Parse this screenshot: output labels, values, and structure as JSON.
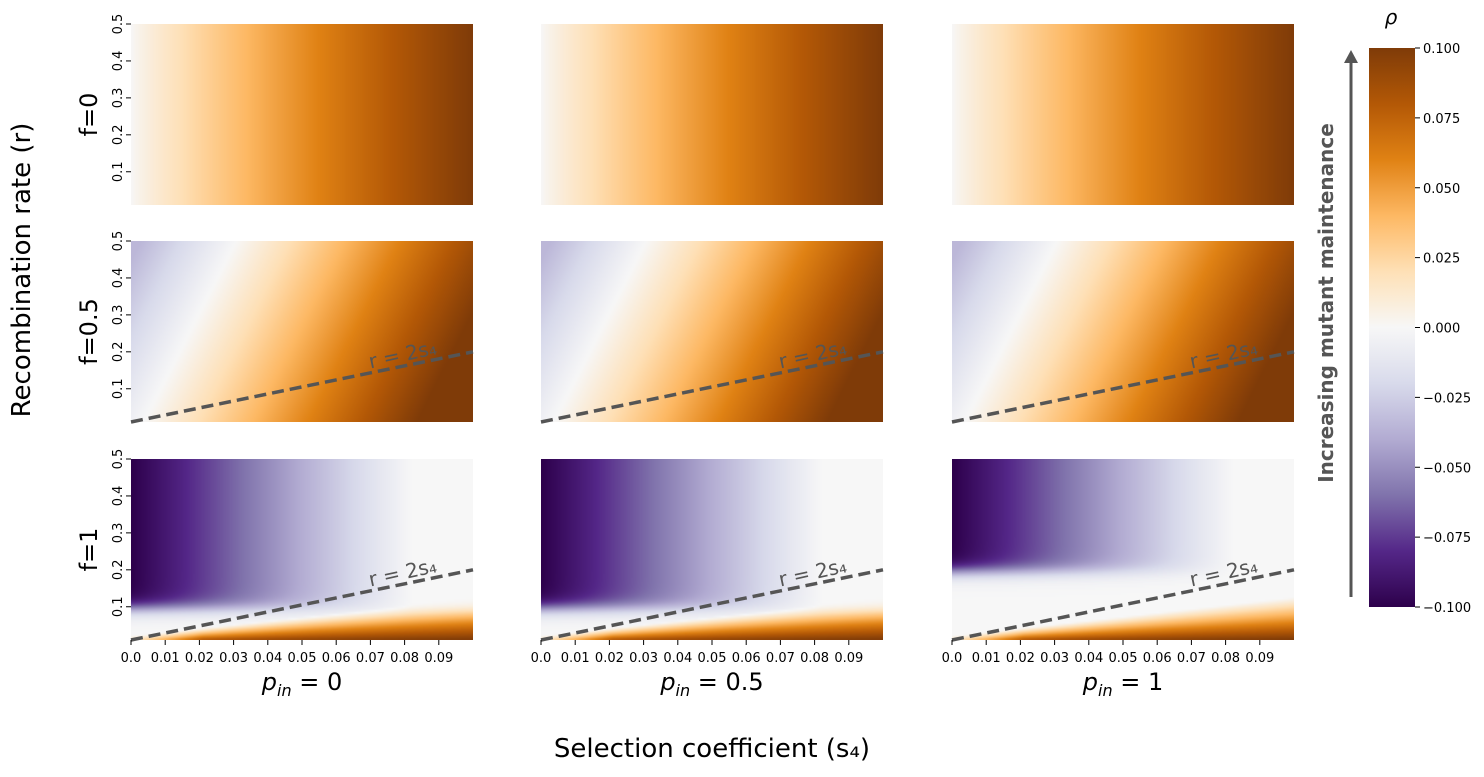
{
  "chart_data": {
    "type": "heatmap",
    "title": "",
    "xlabel": "Selection coefficient (s₄)",
    "ylabel": "Recombination rate (r)",
    "x_range": [
      0.0,
      0.1
    ],
    "y_range": [
      0.01,
      0.5
    ],
    "x_ticks": [
      0.0,
      0.01,
      0.02,
      0.03,
      0.04,
      0.05,
      0.06,
      0.07,
      0.08,
      0.09
    ],
    "x_tick_labels": [
      "0.0",
      "0.01",
      "0.02",
      "0.03",
      "0.04",
      "0.05",
      "0.06",
      "0.07",
      "0.08",
      "0.09"
    ],
    "y_ticks": [
      0.1,
      0.2,
      0.3,
      0.4,
      0.5
    ],
    "y_tick_labels": [
      "0.1",
      "0.2",
      "0.3",
      "0.4",
      "0.5"
    ],
    "row_labels": [
      "f=0",
      "f=0.5",
      "f=1"
    ],
    "col_labels": [
      "p_in = 0",
      "p_in = 0.5",
      "p_in = 1"
    ],
    "col_label_parts": [
      {
        "base": "p",
        "sub": "in",
        "rest": " = 0"
      },
      {
        "base": "p",
        "sub": "in",
        "rest": " = 0.5"
      },
      {
        "base": "p",
        "sub": "in",
        "rest": " = 1"
      }
    ],
    "reference_line": {
      "label": "r = 2s₄",
      "slope": 2,
      "style": "dashed",
      "color": "#555555",
      "shown_for_rows": [
        "f=0.5",
        "f=1"
      ]
    },
    "colorbar": {
      "label": "ρ",
      "range": [
        -0.1,
        0.1
      ],
      "ticks": [
        -0.1,
        -0.075,
        -0.05,
        -0.025,
        0.0,
        0.025,
        0.05,
        0.075,
        0.1
      ],
      "tick_labels": [
        "−0.100",
        "−0.075",
        "−0.050",
        "−0.025",
        "0.000",
        "0.025",
        "0.050",
        "0.075",
        "0.100"
      ],
      "colormap": "PuOr_r",
      "arrow_label": "Increasing mutant maintenance"
    },
    "grid": false,
    "legend": "none"
  }
}
